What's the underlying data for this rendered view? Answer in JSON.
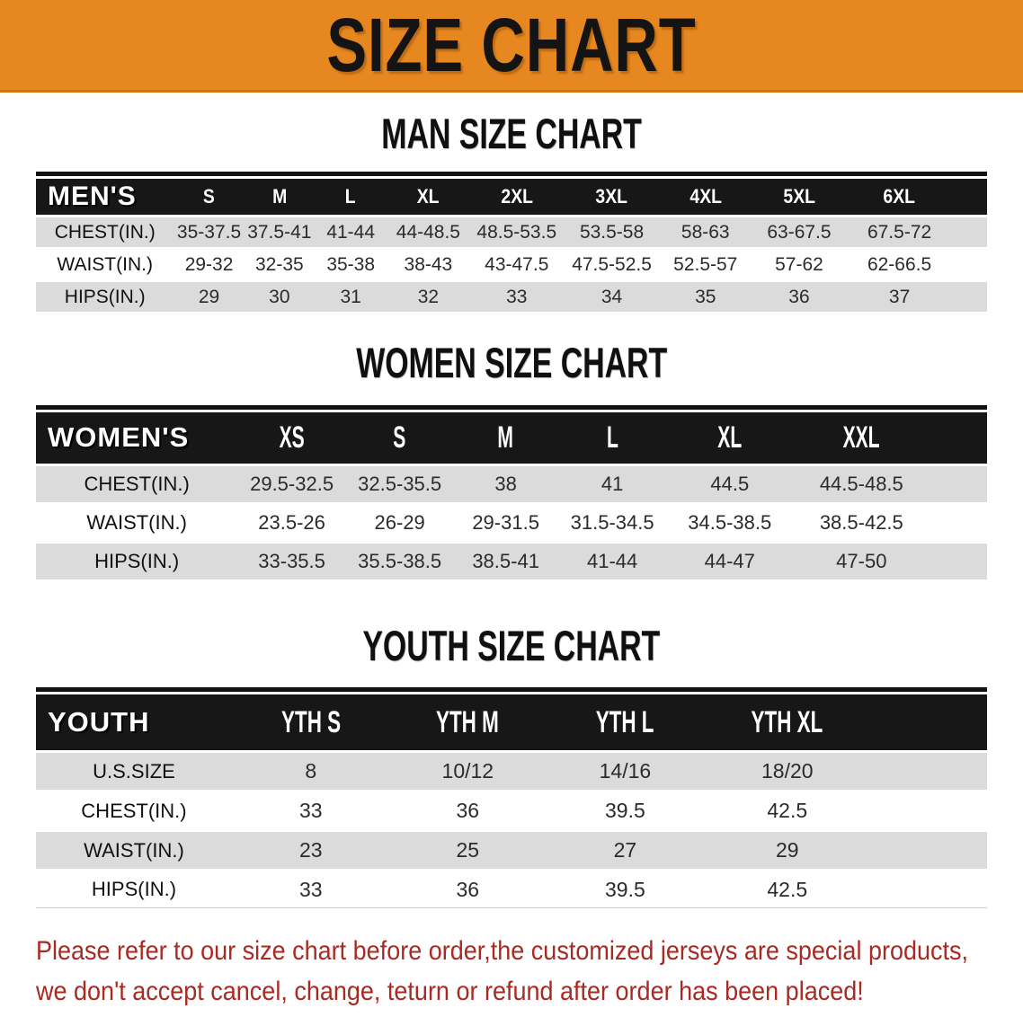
{
  "banner": {
    "title": "SIZE CHART",
    "bg_color": "#E7871F",
    "text_color": "#141414"
  },
  "sections": [
    {
      "heading": "MAN SIZE CHART",
      "table": {
        "corner_label": "MEN'S",
        "columns": [
          "S",
          "M",
          "L",
          "XL",
          "2XL",
          "3XL",
          "4XL",
          "5XL",
          "6XL"
        ],
        "rows": [
          {
            "label": "CHEST(IN.)",
            "values": [
              "35-37.5",
              "37.5-41",
              "41-44",
              "44-48.5",
              "48.5-53.5",
              "53.5-58",
              "58-63",
              "63-67.5",
              "67.5-72"
            ]
          },
          {
            "label": "WAIST(IN.)",
            "values": [
              "29-32",
              "32-35",
              "35-38",
              "38-43",
              "43-47.5",
              "47.5-52.5",
              "52.5-57",
              "57-62",
              "62-66.5"
            ]
          },
          {
            "label": "HIPS(IN.)",
            "values": [
              "29",
              "30",
              "31",
              "32",
              "33",
              "34",
              "35",
              "36",
              "37"
            ]
          }
        ]
      }
    },
    {
      "heading": "WOMEN SIZE CHART",
      "table": {
        "corner_label": "WOMEN'S",
        "columns": [
          "XS",
          "S",
          "M",
          "L",
          "XL",
          "XXL"
        ],
        "rows": [
          {
            "label": "CHEST(IN.)",
            "values": [
              "29.5-32.5",
              "32.5-35.5",
              "38",
              "41",
              "44.5",
              "44.5-48.5"
            ]
          },
          {
            "label": "WAIST(IN.)",
            "values": [
              "23.5-26",
              "26-29",
              "29-31.5",
              "31.5-34.5",
              "34.5-38.5",
              "38.5-42.5"
            ]
          },
          {
            "label": "HIPS(IN.)",
            "values": [
              "33-35.5",
              "35.5-38.5",
              "38.5-41",
              "41-44",
              "44-47",
              "47-50"
            ]
          }
        ]
      }
    },
    {
      "heading": "YOUTH SIZE CHART",
      "table": {
        "corner_label": "YOUTH",
        "columns": [
          "YTH S",
          "YTH M",
          "YTH L",
          "YTH XL"
        ],
        "rows": [
          {
            "label": "U.S.SIZE",
            "values": [
              "8",
              "10/12",
              "14/16",
              "18/20"
            ]
          },
          {
            "label": "CHEST(IN.)",
            "values": [
              "33",
              "36",
              "39.5",
              "42.5"
            ]
          },
          {
            "label": "WAIST(IN.)",
            "values": [
              "23",
              "25",
              "27",
              "29"
            ]
          },
          {
            "label": "HIPS(IN.)",
            "values": [
              "33",
              "36",
              "39.5",
              "42.5"
            ]
          }
        ]
      }
    }
  ],
  "footnote": {
    "line1": "Please refer to our size chart before order,the customized jerseys are special products,",
    "line2": "we don't accept cancel, change, teturn or refund after order has been placed!",
    "color": "#A82A22"
  },
  "colors": {
    "banner_orange": "#E7871F",
    "table_header_black": "#171717",
    "row_gray": "#DBDBDB",
    "row_white": "#ffffff",
    "note_red": "#A82A22"
  }
}
